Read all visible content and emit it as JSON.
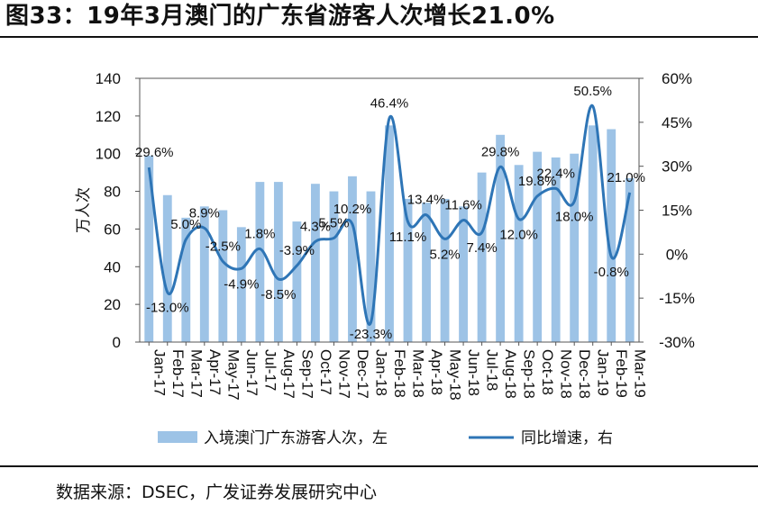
{
  "header": {
    "title": "图33：19年3月澳门的广东省游客人次增长21.0%"
  },
  "footer": {
    "source": "数据来源：DSEC，广发证券发展研究中心"
  },
  "chart_data": {
    "type": "bar+line",
    "categories": [
      "Jan-17",
      "Feb-17",
      "Mar-17",
      "Apr-17",
      "May-17",
      "Jun-17",
      "Jul-17",
      "Aug-17",
      "Sep-17",
      "Oct-17",
      "Nov-17",
      "Dec-17",
      "Jan-18",
      "Feb-18",
      "Mar-18",
      "Apr-18",
      "May-18",
      "Jun-18",
      "Jul-18",
      "Aug-18",
      "Sep-18",
      "Oct-18",
      "Nov-18",
      "Dec-18",
      "Jan-19",
      "Feb-19",
      "Mar-19"
    ],
    "series": [
      {
        "name": "入境澳门广东游客人次，左",
        "type": "bar",
        "axis": "left",
        "color": "#9DC3E6",
        "values": [
          99,
          78,
          66,
          72,
          70,
          61,
          85,
          85,
          64,
          84,
          80,
          88,
          80,
          115,
          76,
          74,
          76,
          72,
          90,
          110,
          94,
          101,
          98,
          100,
          115,
          113,
          87
        ]
      },
      {
        "name": "同比增速，右",
        "type": "line",
        "axis": "right",
        "color": "#2E75B6",
        "unit": "%",
        "values": [
          29.6,
          -13.0,
          5.0,
          8.9,
          -2.5,
          -4.9,
          1.8,
          -8.5,
          -3.9,
          4.3,
          5.5,
          10.2,
          -23.3,
          46.4,
          11.1,
          13.4,
          5.2,
          11.6,
          7.4,
          29.8,
          12.0,
          19.8,
          22.4,
          18.0,
          50.5,
          -0.8,
          21.0
        ],
        "labels": [
          "29.6%",
          "-13.0%",
          "5.0%",
          "8.9%",
          "-2.5%",
          "-4.9%",
          "1.8%",
          "-8.5%",
          "-3.9%",
          "4.3%",
          "5.5%",
          "10.2%",
          "-23.3%",
          "46.4%",
          "11.1%",
          "13.4%",
          "5.2%",
          "11.6%",
          "7.4%",
          "29.8%",
          "12.0%",
          "19.8%",
          "22.4%",
          "18.0%",
          "50.5%",
          "-0.8%",
          "21.0%"
        ]
      }
    ],
    "y_left": {
      "label": "万人次",
      "ylim": [
        0,
        140
      ],
      "ticks": [
        "0",
        "20",
        "40",
        "60",
        "80",
        "100",
        "120",
        "140"
      ]
    },
    "y_right": {
      "ylim": [
        -30,
        60
      ],
      "ticks": [
        "-30%",
        "-15%",
        "0%",
        "15%",
        "30%",
        "45%",
        "60%"
      ]
    },
    "grid": false,
    "legend_position": "bottom"
  }
}
